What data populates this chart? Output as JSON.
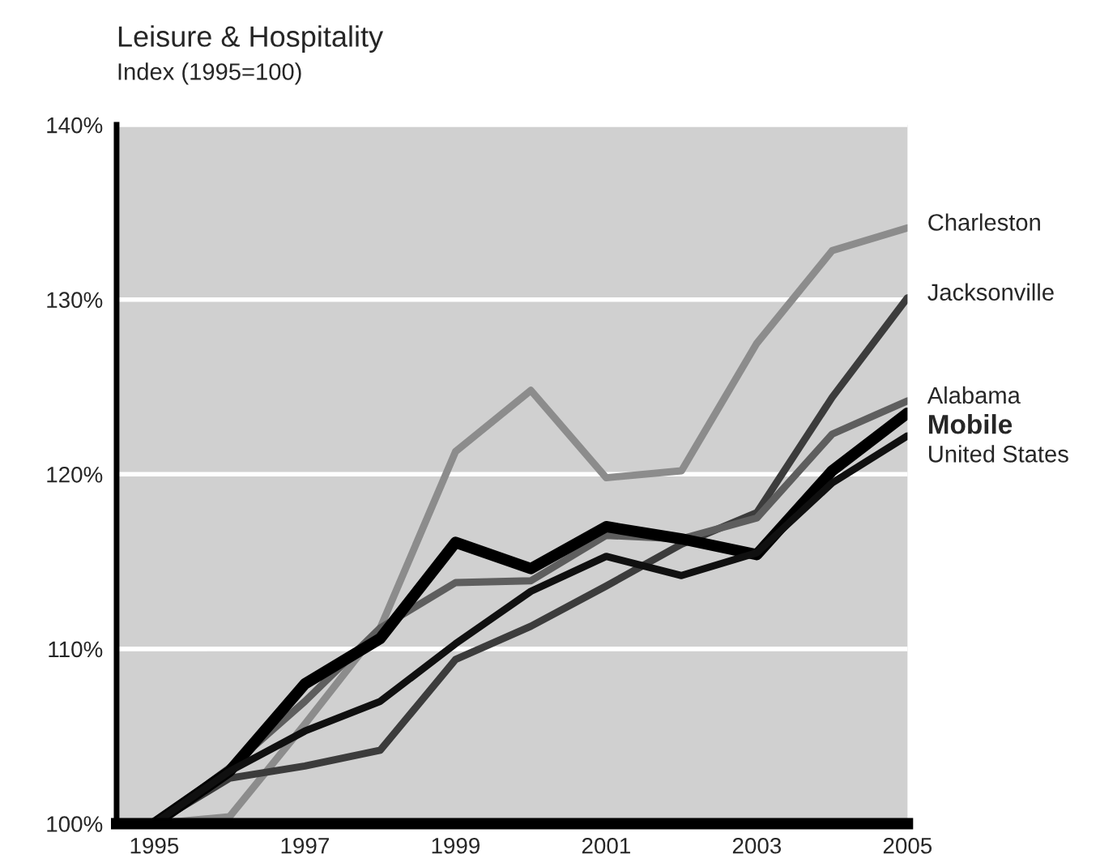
{
  "chart_data": {
    "type": "line",
    "title": "Leisure & Hospitality",
    "subtitle": "Index (1995=100)",
    "x": [
      1995,
      1996,
      1997,
      1998,
      1999,
      2000,
      2001,
      2002,
      2003,
      2004,
      2005
    ],
    "series": [
      {
        "name": "Charleston",
        "color": "#8c8c8c",
        "values": [
          100,
          100.4,
          105.7,
          111.2,
          121.3,
          124.8,
          119.8,
          120.2,
          127.5,
          132.8,
          134.1
        ]
      },
      {
        "name": "Jacksonville",
        "color": "#3c3c3c",
        "values": [
          100,
          102.6,
          103.3,
          104.2,
          109.4,
          111.3,
          113.6,
          116.0,
          117.8,
          124.4,
          130.1
        ]
      },
      {
        "name": "Alabama",
        "color": "#5e5e5e",
        "values": [
          100,
          103.2,
          107.0,
          111.2,
          113.8,
          113.9,
          116.5,
          116.3,
          117.5,
          122.3,
          124.2
        ]
      },
      {
        "name": "Mobile",
        "color": "#000000",
        "values": [
          100,
          103.0,
          108.0,
          110.6,
          116.1,
          114.6,
          117.0,
          116.3,
          115.4,
          120.2,
          123.5
        ]
      },
      {
        "name": "United States",
        "color": "#101010",
        "values": [
          100,
          103.0,
          105.3,
          107.0,
          110.3,
          113.3,
          115.3,
          114.2,
          115.5,
          119.5,
          122.2
        ]
      }
    ],
    "xlim": [
      1994.5,
      2005.0
    ],
    "ylim": [
      100,
      140
    ],
    "xticks": [
      1995,
      1997,
      1999,
      2001,
      2003,
      2005
    ],
    "yticks": [
      {
        "value": 100,
        "label": "100%"
      },
      {
        "value": 110,
        "label": "110%"
      },
      {
        "value": 120,
        "label": "120%"
      },
      {
        "value": 130,
        "label": "130%"
      },
      {
        "value": 140,
        "label": "140%"
      }
    ],
    "grid": "y",
    "legend": false,
    "marker": "none",
    "line_style": "solid"
  }
}
